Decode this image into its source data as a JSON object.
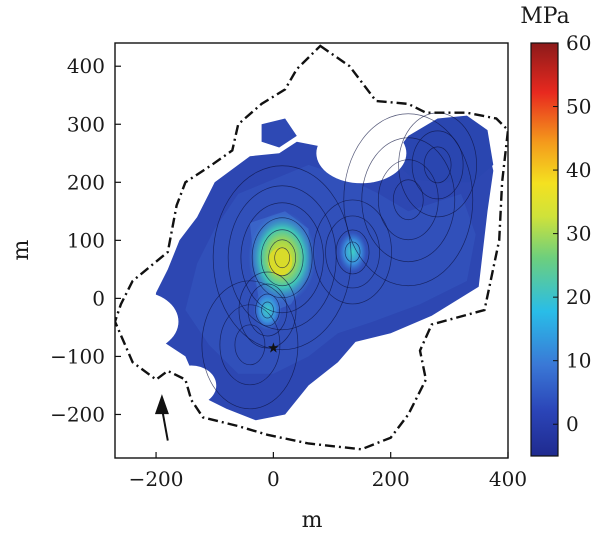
{
  "chart_data": {
    "type": "heatmap",
    "xlabel": "m",
    "ylabel": "m",
    "xlim": [
      -270,
      400
    ],
    "ylim": [
      -275,
      440
    ],
    "xticks": [
      -200,
      0,
      200,
      400
    ],
    "yticks": [
      -200,
      -100,
      0,
      100,
      200,
      300,
      400
    ],
    "colorbar": {
      "label": "MPa",
      "range": [
        -5,
        60
      ],
      "ticks": [
        0,
        10,
        20,
        30,
        40,
        50,
        60
      ],
      "colormap": "jet"
    },
    "series": [
      {
        "kind": "boundary",
        "style": "dash-dot",
        "points": [
          [
            80,
            435
          ],
          [
            130,
            400
          ],
          [
            175,
            340
          ],
          [
            230,
            335
          ],
          [
            260,
            320
          ],
          [
            330,
            320
          ],
          [
            380,
            310
          ],
          [
            400,
            290
          ],
          [
            390,
            200
          ],
          [
            385,
            100
          ],
          [
            360,
            -20
          ],
          [
            270,
            -45
          ],
          [
            250,
            -90
          ],
          [
            260,
            -140
          ],
          [
            230,
            -200
          ],
          [
            200,
            -240
          ],
          [
            150,
            -260
          ],
          [
            60,
            -250
          ],
          [
            -10,
            -235
          ],
          [
            -60,
            -220
          ],
          [
            -120,
            -205
          ],
          [
            -140,
            -175
          ],
          [
            -150,
            -140
          ],
          [
            -180,
            -125
          ],
          [
            -200,
            -140
          ],
          [
            -240,
            -110
          ],
          [
            -270,
            -40
          ],
          [
            -260,
            -10
          ],
          [
            -240,
            30
          ],
          [
            -180,
            80
          ],
          [
            -165,
            160
          ],
          [
            -150,
            200
          ],
          [
            -105,
            230
          ],
          [
            -70,
            255
          ],
          [
            -60,
            300
          ],
          [
            -20,
            335
          ],
          [
            20,
            360
          ],
          [
            40,
            395
          ],
          [
            80,
            435
          ]
        ]
      },
      {
        "kind": "stress_field",
        "unit": "MPa",
        "peak": {
          "x": 15,
          "y": 70,
          "value": 34
        },
        "secondary_peaks": [
          {
            "x": -10,
            "y": -20,
            "value": 16
          },
          {
            "x": 135,
            "y": 80,
            "value": 10
          }
        ],
        "background_value": 1
      }
    ],
    "annotations": [
      {
        "type": "arrow",
        "from": [
          -180,
          -245
        ],
        "to": [
          -190,
          -165
        ]
      },
      {
        "type": "star",
        "x": 0,
        "y": -85
      }
    ]
  }
}
